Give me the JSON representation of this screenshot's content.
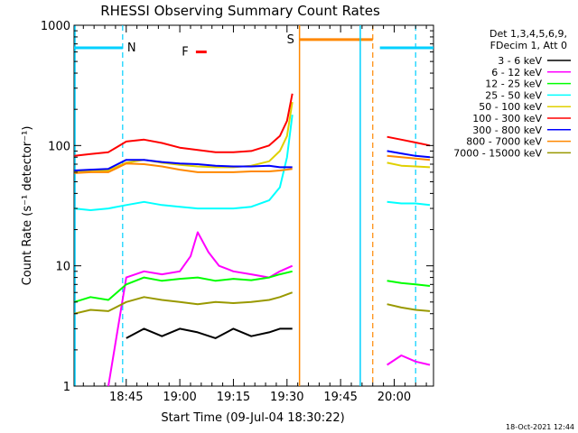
{
  "chart_data": {
    "type": "line",
    "title": "RHESSI Observing Summary Count Rates",
    "xlabel": "Start Time (09-Jul-04 18:30:22)",
    "ylabel": "Count Rate (s⁻¹ detector⁻¹)",
    "yscale": "log",
    "ylim": [
      1,
      1000
    ],
    "xlim_minutes_after_1830": [
      0.4,
      101
    ],
    "x_ticks": [
      {
        "minute": 15,
        "label": "18:45"
      },
      {
        "minute": 30,
        "label": "19:00"
      },
      {
        "minute": 45,
        "label": "19:15"
      },
      {
        "minute": 60,
        "label": "19:30"
      },
      {
        "minute": 75,
        "label": "19:45"
      },
      {
        "minute": 90,
        "label": "20:00"
      }
    ],
    "y_ticks": [
      {
        "value": 1,
        "label": "1"
      },
      {
        "value": 10,
        "label": "10"
      },
      {
        "value": 100,
        "label": "100"
      },
      {
        "value": 1000,
        "label": "1000"
      }
    ],
    "legend_header": [
      "Det 1,3,4,5,6,9,",
      "FDecim 1, Att 0"
    ],
    "legend_position": "right",
    "series": [
      {
        "name": "3 - 6 keV",
        "color": "#000000",
        "x": [
          15,
          20,
          25,
          30,
          35,
          40,
          45,
          50,
          55,
          58,
          61.5,
          88,
          92,
          96,
          100
        ],
        "y": [
          2.5,
          3,
          2.6,
          3,
          2.8,
          2.5,
          3,
          2.6,
          2.8,
          3,
          3,
          null,
          null,
          null,
          null
        ]
      },
      {
        "name": "6 - 12 keV",
        "color": "#ff00ff",
        "x": [
          10,
          15,
          20,
          25,
          30,
          33,
          35,
          38,
          41,
          45,
          50,
          55,
          58,
          61.5,
          88,
          92,
          96,
          100
        ],
        "y": [
          1,
          8,
          9,
          8.5,
          9,
          12,
          19,
          13,
          10,
          9,
          8.5,
          8,
          9,
          10,
          1.5,
          1.8,
          1.6,
          1.5
        ]
      },
      {
        "name": "12 - 25 keV",
        "color": "#00ff00",
        "x": [
          0.5,
          5,
          10,
          15,
          20,
          25,
          30,
          35,
          40,
          45,
          50,
          55,
          58,
          61.5,
          88,
          92,
          96,
          100
        ],
        "y": [
          5,
          5.5,
          5.2,
          7,
          8,
          7.5,
          7.8,
          8,
          7.5,
          7.8,
          7.6,
          8,
          8.5,
          9,
          7.5,
          7.2,
          7,
          6.8
        ]
      },
      {
        "name": "25 - 50 keV",
        "color": "#00ffff",
        "x": [
          0.5,
          5,
          10,
          15,
          20,
          25,
          30,
          35,
          40,
          45,
          50,
          55,
          58,
          60,
          61.5,
          88,
          92,
          96,
          100
        ],
        "y": [
          30,
          29,
          30,
          32,
          34,
          32,
          31,
          30,
          30,
          30,
          31,
          35,
          45,
          80,
          180,
          34,
          33,
          33,
          32
        ]
      },
      {
        "name": "50 - 100 keV",
        "color": "#e0d000",
        "x": [
          0.5,
          5,
          10,
          15,
          20,
          25,
          30,
          35,
          40,
          45,
          50,
          55,
          58,
          60,
          61.5,
          88,
          92,
          96,
          100
        ],
        "y": [
          60,
          62,
          62,
          72,
          76,
          72,
          69,
          67,
          66,
          66,
          68,
          74,
          90,
          120,
          230,
          72,
          68,
          67,
          66
        ]
      },
      {
        "name": "100 - 300 keV",
        "color": "#ff0000",
        "x": [
          0.5,
          5,
          10,
          15,
          20,
          25,
          30,
          35,
          40,
          45,
          50,
          55,
          58,
          60,
          61.5,
          88,
          92,
          96,
          100
        ],
        "y": [
          82,
          85,
          88,
          108,
          112,
          105,
          96,
          92,
          88,
          88,
          90,
          100,
          120,
          160,
          270,
          118,
          112,
          106,
          100
        ]
      },
      {
        "name": "300 - 800 keV",
        "color": "#0000ff",
        "x": [
          0.5,
          5,
          10,
          15,
          20,
          25,
          30,
          35,
          40,
          45,
          50,
          55,
          58,
          61.5,
          88,
          92,
          96,
          100
        ],
        "y": [
          62,
          63,
          64,
          76,
          76,
          73,
          71,
          70,
          68,
          67,
          67,
          68,
          66,
          66,
          90,
          86,
          82,
          80
        ]
      },
      {
        "name": "800 - 7000 keV",
        "color": "#ff8800",
        "x": [
          0.5,
          5,
          10,
          15,
          20,
          25,
          30,
          35,
          40,
          45,
          50,
          55,
          58,
          61.5,
          88,
          92,
          96,
          100
        ],
        "y": [
          59,
          60,
          60,
          71,
          70,
          67,
          63,
          60,
          60,
          60,
          61,
          61,
          62,
          64,
          82,
          80,
          78,
          76
        ]
      },
      {
        "name": "7000 - 15000 keV",
        "color": "#999900",
        "x": [
          0.5,
          5,
          10,
          15,
          20,
          25,
          30,
          35,
          40,
          45,
          50,
          55,
          58,
          61.5,
          88,
          92,
          96,
          100
        ],
        "y": [
          4,
          4.3,
          4.2,
          5,
          5.5,
          5.2,
          5,
          4.8,
          5,
          4.9,
          5,
          5.2,
          5.5,
          6,
          4.8,
          4.5,
          4.3,
          4.2
        ]
      }
    ],
    "annotations": [
      {
        "label": "N",
        "color": "#00d0ff",
        "bar_start": 0.4,
        "bar_end": 14,
        "bar_y": 650,
        "label_at": 16.5,
        "dashed_at": 14
      },
      {
        "label": "F",
        "color": "#ff0000",
        "bar_start": 34.5,
        "bar_end": 37.5,
        "bar_y": 600,
        "label_at": 31.5
      },
      {
        "label": "S",
        "color": "#ff8800",
        "bar_start": 63.5,
        "bar_end": 84,
        "bar_y": 760,
        "label_at": 61,
        "solid_at": 63.5,
        "dashed_at": 84
      },
      {
        "label": "",
        "color": "#00d0ff",
        "bar_start": 86,
        "bar_end": 101,
        "bar_y": 650,
        "solid_at": 80.5,
        "dashed_at": 96
      }
    ],
    "grid": false
  },
  "timestamp": "18-Oct-2021 12:44"
}
